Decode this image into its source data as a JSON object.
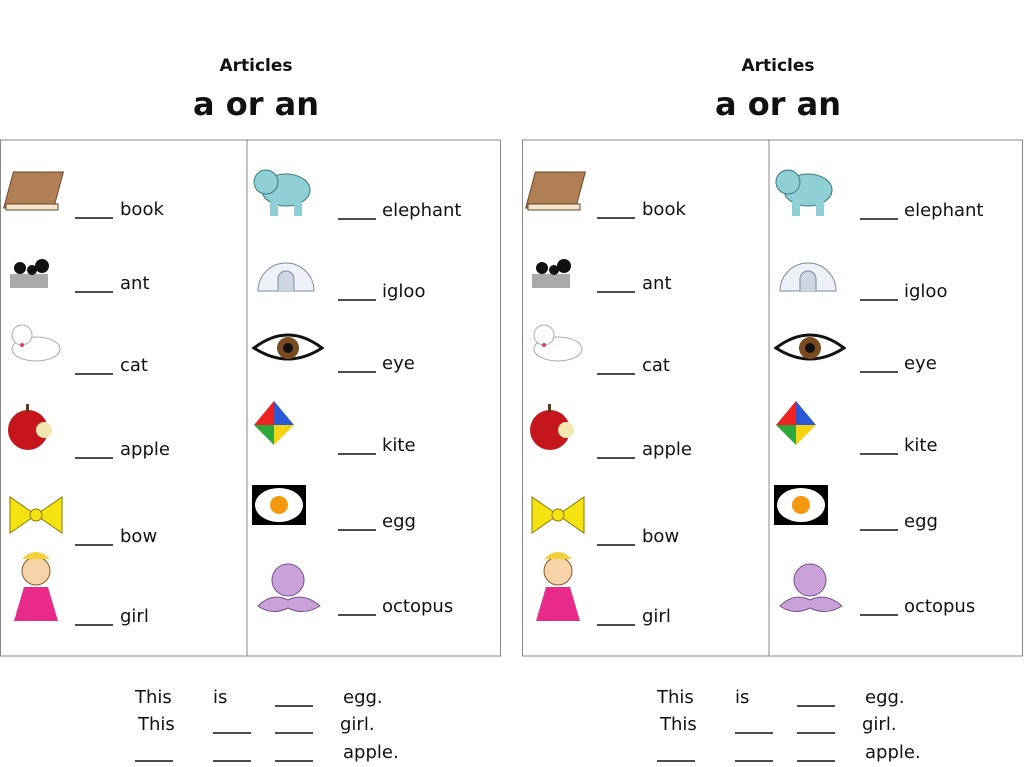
{
  "sheets": [
    {
      "subtitle": "Articles",
      "title": "a or an",
      "left": [
        "book",
        "ant",
        "cat",
        "apple",
        "bow",
        "girl"
      ],
      "right": [
        "elephant",
        "igloo",
        "eye",
        "kite",
        "egg",
        "octopus"
      ],
      "sentences": [
        [
          "This",
          "is",
          "egg."
        ],
        [
          "This",
          "girl."
        ],
        [
          "apple."
        ]
      ]
    },
    {
      "subtitle": "Articles",
      "title": "a or an",
      "left": [
        "book",
        "ant",
        "cat",
        "apple",
        "bow",
        "girl"
      ],
      "right": [
        "elephant",
        "igloo",
        "eye",
        "kite",
        "egg",
        "octopus"
      ],
      "sentences": [
        [
          "This",
          "is",
          "egg."
        ],
        [
          "This",
          "girl."
        ],
        [
          "apple."
        ]
      ]
    }
  ]
}
